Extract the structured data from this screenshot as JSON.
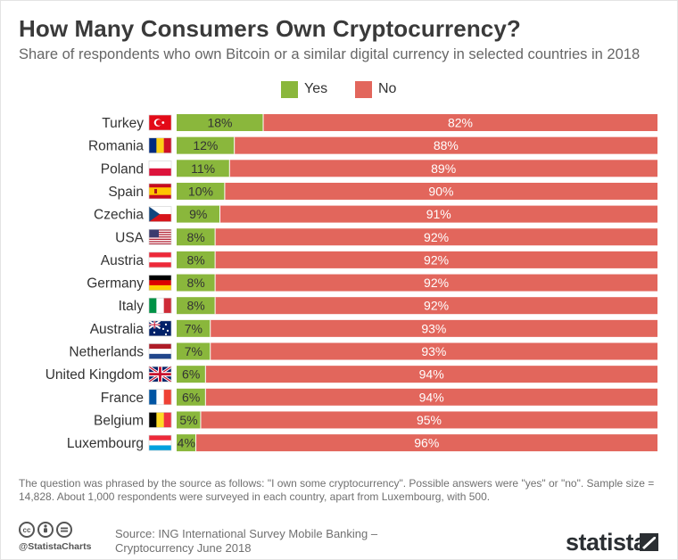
{
  "title": "How Many Consumers Own Cryptocurrency?",
  "subtitle": "Share of respondents who own Bitcoin or a similar digital currency in selected countries in 2018",
  "chart_data": {
    "type": "bar",
    "orientation": "horizontal",
    "stacked": true,
    "percent_stacked": true,
    "title": "How Many Consumers Own Cryptocurrency?",
    "subtitle": "Share of respondents who own Bitcoin or a similar digital currency in selected countries in 2018",
    "xlabel": "",
    "ylabel": "",
    "xlim": [
      0,
      100
    ],
    "grid": false,
    "legend_position": "top-center",
    "value_format": "{v}%",
    "categories": [
      "Turkey",
      "Romania",
      "Poland",
      "Spain",
      "Czechia",
      "USA",
      "Austria",
      "Germany",
      "Italy",
      "Australia",
      "Netherlands",
      "United Kingdom",
      "France",
      "Belgium",
      "Luxembourg"
    ],
    "series": [
      {
        "name": "Yes",
        "color": "#8ab73c",
        "values": [
          18,
          12,
          11,
          10,
          9,
          8,
          8,
          8,
          8,
          7,
          7,
          6,
          6,
          5,
          4
        ]
      },
      {
        "name": "No",
        "color": "#e2665c",
        "values": [
          82,
          88,
          89,
          90,
          91,
          92,
          92,
          92,
          92,
          93,
          93,
          94,
          94,
          95,
          96
        ]
      }
    ],
    "flags": [
      "flag-turkey-icon",
      "flag-romania-icon",
      "flag-poland-icon",
      "flag-spain-icon",
      "flag-czechia-icon",
      "flag-usa-icon",
      "flag-austria-icon",
      "flag-germany-icon",
      "flag-italy-icon",
      "flag-australia-icon",
      "flag-netherlands-icon",
      "flag-united-kingdom-icon",
      "flag-france-icon",
      "flag-belgium-icon",
      "flag-luxembourg-icon"
    ]
  },
  "footer": {
    "note": "The question was phrased by the source as follows: \"I own some cryptocurrency\". Possible answers were \"yes\" or \"no\". Sample size = 14,828. About 1,000 respondents were surveyed in each country, apart from Luxembourg, with 500.",
    "source": "Source: ING International Survey Mobile Banking – Cryptocurrency June 2018",
    "handle": "@StatistaCharts",
    "brand": "statista",
    "license_icons": [
      "cc-icon",
      "attribution-icon",
      "no-derivatives-icon"
    ]
  },
  "colors": {
    "yes": "#8ab73c",
    "no": "#e2665c",
    "title": "#3a3a3a",
    "subtitle": "#666666"
  }
}
